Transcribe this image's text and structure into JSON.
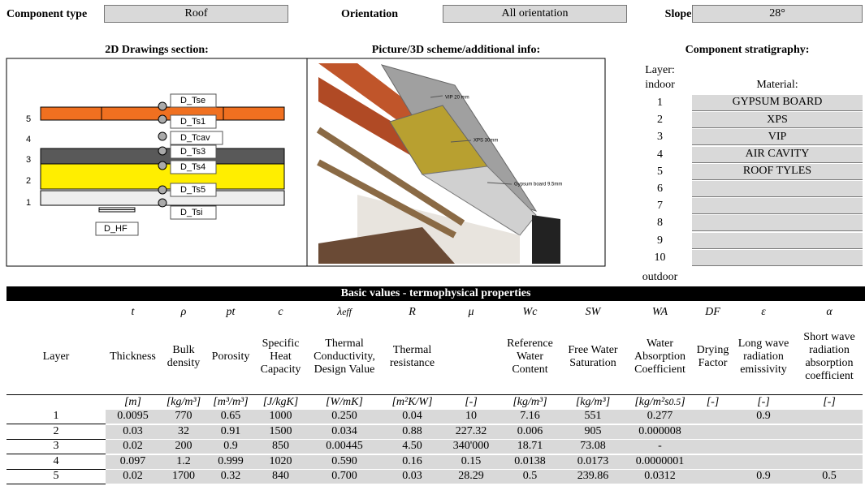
{
  "header": {
    "component_type_label": "Component type",
    "component_type": "Roof",
    "orientation_label": "Orientation",
    "orientation": "All orientation",
    "slope_label": "Slope",
    "slope": "28°"
  },
  "sections": {
    "drawings": "2D Drawings section:",
    "picture": "Picture/3D scheme/additional info:",
    "stratigraphy": "Component stratigraphy:"
  },
  "drawing": {
    "layer_numbers": [
      "5",
      "4",
      "3",
      "2",
      "1"
    ],
    "sensors": [
      "D_Tse",
      "D_Ts1",
      "D_Tcav",
      "D_Ts3",
      "D_Ts4",
      "D_Ts5",
      "D_Tsi"
    ],
    "heat_flux": "D_HF"
  },
  "picture": {
    "labels": [
      "VIP 20 mm",
      "XPS 30mm",
      "Gypsum board 9.5mm"
    ]
  },
  "stratigraphy": {
    "layer_label": "Layer:",
    "indoor": "indoor",
    "material_label": "Material:",
    "layers": [
      "1",
      "2",
      "3",
      "4",
      "5",
      "6",
      "7",
      "8",
      "9",
      "10"
    ],
    "materials": [
      "GYPSUM BOARD",
      "XPS",
      "VIP",
      "AIR CAVITY",
      "ROOF TYLES"
    ],
    "outdoor": "outdoor"
  },
  "table": {
    "title": "Basic values - termophysical properties",
    "layer_header": "Layer",
    "columns": [
      {
        "symbol": {
          "base": "t"
        },
        "description": "Thickness",
        "unit": {
          "base": "[m]"
        }
      },
      {
        "symbol": {
          "base": "ρ"
        },
        "description": "Bulk density",
        "unit": {
          "base": "[kg/m³]"
        }
      },
      {
        "symbol": {
          "base": "pt"
        },
        "description": "Porosity",
        "unit": {
          "base": "[m³/m³]"
        }
      },
      {
        "symbol": {
          "base": "c"
        },
        "description": "Specific Heat Capacity",
        "unit": {
          "base": "[J/kgK]"
        }
      },
      {
        "symbol": {
          "base": "λ",
          "sub": "eff"
        },
        "description": "Thermal Conductivity, Design Value",
        "unit": {
          "base": "[W/mK]"
        }
      },
      {
        "symbol": {
          "base": "R"
        },
        "description": "Thermal resistance",
        "unit": {
          "base": "[m²K/W]"
        }
      },
      {
        "symbol": {
          "base": "μ"
        },
        "unit": {
          "base": "[-]"
        }
      },
      {
        "symbol": {
          "base": "Wc"
        },
        "description": "Reference Water Content",
        "unit": {
          "base": "[kg/m³]"
        }
      },
      {
        "symbol": {
          "base": "SW"
        },
        "description": "Free Water Saturation",
        "unit": {
          "base": "[kg/m³]"
        }
      },
      {
        "symbol": {
          "base": "WA"
        },
        "description": "Water Absorption Coefficient",
        "unit": {
          "base": "[kg/m²s",
          "sup": "0.5",
          "end": "]"
        }
      },
      {
        "symbol": {
          "base": "DF"
        },
        "description": "Drying Factor",
        "unit": {
          "base": "[-]"
        }
      },
      {
        "symbol": {
          "base": "ε"
        },
        "description": "Long wave radiation emissivity",
        "unit": {
          "base": "[-]"
        }
      },
      {
        "symbol": {
          "base": "α"
        },
        "description": "Short wave radiation absorption coefficient",
        "unit": {
          "base": "[-]"
        }
      }
    ],
    "rows": [
      {
        "layer": "1",
        "cells": [
          "0.0095",
          "770",
          "0.65",
          "1000",
          "0.250",
          "0.04",
          "10",
          "7.16",
          "551",
          "0.277",
          null,
          "0.9",
          null
        ]
      },
      {
        "layer": "2",
        "cells": [
          "0.03",
          "32",
          "0.91",
          "1500",
          "0.034",
          "0.88",
          "227.32",
          "0.006",
          "905",
          "0.000008",
          null,
          null,
          null
        ]
      },
      {
        "layer": "3",
        "cells": [
          "0.02",
          "200",
          "0.9",
          "850",
          "0.00445",
          "4.50",
          "340'000",
          "18.71",
          "73.08",
          "-",
          null,
          null,
          null
        ]
      },
      {
        "layer": "4",
        "cells": [
          "0.097",
          "1.2",
          "0.999",
          "1020",
          "0.590",
          "0.16",
          "0.15",
          "0.0138",
          "0.0173",
          "0.0000001",
          null,
          null,
          null
        ]
      },
      {
        "layer": "5",
        "cells": [
          "0.02",
          "1700",
          "0.32",
          "840",
          "0.700",
          "0.03",
          "28.29",
          "0.5",
          "239.86",
          "0.0312",
          null,
          "0.9",
          "0.5"
        ]
      }
    ]
  }
}
